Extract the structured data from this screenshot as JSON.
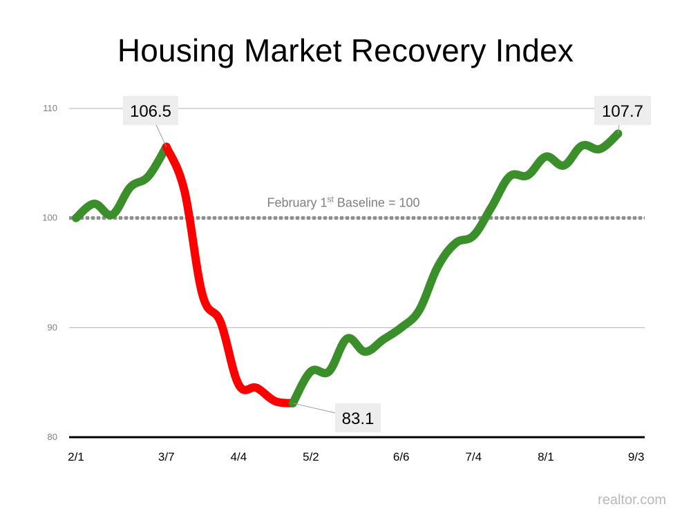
{
  "title": "Housing Market Recovery Index",
  "source": "realtor.com",
  "colors": {
    "decline": "#ff0000",
    "recovery": "#3a8f2a",
    "grid": "#b3b3b3",
    "baseline": "#8c8c8c",
    "axis": "#000000",
    "callout_bg": "#ededed"
  },
  "chart_data": {
    "type": "line",
    "title": "Housing Market Recovery Index",
    "ylim": [
      80,
      110
    ],
    "yticks": [
      80,
      90,
      100,
      110
    ],
    "xlim": [
      0,
      33
    ],
    "xtick_labels": [
      {
        "x": 0,
        "label": "2/1"
      },
      {
        "x": 5,
        "label": "3/7"
      },
      {
        "x": 9,
        "label": "4/4"
      },
      {
        "x": 13,
        "label": "5/2"
      },
      {
        "x": 18,
        "label": "6/6"
      },
      {
        "x": 22,
        "label": "7/4"
      },
      {
        "x": 26,
        "label": "8/1"
      },
      {
        "x": 31,
        "label": "9/3"
      }
    ],
    "grid": true,
    "baseline": {
      "value": 100,
      "label_main": "February 1",
      "label_sup": "st",
      "label_tail": " Baseline = 100"
    },
    "series": [
      {
        "segment": "recovery",
        "points": [
          [
            0,
            100
          ],
          [
            1,
            101.3
          ],
          [
            2,
            100.3
          ],
          [
            3,
            102.8
          ],
          [
            4,
            103.8
          ],
          [
            5,
            106.5
          ]
        ]
      },
      {
        "segment": "decline",
        "points": [
          [
            5,
            106.5
          ],
          [
            6,
            102.5
          ],
          [
            7,
            93
          ],
          [
            8,
            90.5
          ],
          [
            9,
            84.8
          ],
          [
            10,
            84.5
          ],
          [
            11,
            83.3
          ],
          [
            12,
            83.1
          ]
        ]
      },
      {
        "segment": "recovery",
        "points": [
          [
            12,
            83.1
          ],
          [
            13,
            86
          ],
          [
            14,
            86
          ],
          [
            15,
            89
          ],
          [
            16,
            87.8
          ],
          [
            17,
            88.9
          ],
          [
            18,
            90
          ],
          [
            19,
            91.6
          ],
          [
            20,
            95.5
          ],
          [
            21,
            97.7
          ],
          [
            22,
            98.4
          ],
          [
            23,
            101
          ],
          [
            24,
            103.8
          ],
          [
            25,
            103.9
          ],
          [
            26,
            105.6
          ],
          [
            27,
            104.8
          ],
          [
            28,
            106.6
          ],
          [
            29,
            106.3
          ],
          [
            30,
            107.7
          ]
        ]
      }
    ],
    "annotations": [
      {
        "text": "106.5",
        "x": 5,
        "y": 106.5
      },
      {
        "text": "83.1",
        "x": 12,
        "y": 83.1
      },
      {
        "text": "107.7",
        "x": 30,
        "y": 107.7
      }
    ]
  }
}
